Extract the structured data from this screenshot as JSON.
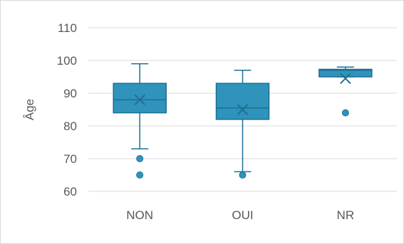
{
  "chart_data": {
    "type": "box",
    "title": "",
    "xlabel": "",
    "ylabel": "Âge",
    "ylim": [
      60,
      110
    ],
    "yticks": [
      60,
      70,
      80,
      90,
      100,
      110
    ],
    "ytick_labels": [
      "60",
      "70",
      "80",
      "90",
      "100",
      "110"
    ],
    "grid": true,
    "legend": "none",
    "categories": [
      "NON",
      "OUI",
      "NR"
    ],
    "boxes": [
      {
        "category": "NON",
        "whisker_low": 73,
        "q1": 84,
        "median": 88,
        "q3": 93,
        "whisker_high": 99,
        "mean": 88,
        "outliers": [
          70,
          65
        ]
      },
      {
        "category": "OUI",
        "whisker_low": 66,
        "q1": 82,
        "median": 85.5,
        "q3": 93,
        "whisker_high": 97,
        "mean": 85,
        "outliers": [
          65
        ]
      },
      {
        "category": "NR",
        "whisker_low": 95,
        "q1": 95,
        "median": 97,
        "q3": 97.3,
        "whisker_high": 98,
        "mean": 94.5,
        "outliers": [
          84
        ]
      }
    ],
    "colors": {
      "fill": "#2f93bb",
      "stroke": "#1e6f94",
      "grid": "#d9d9d9",
      "text": "#595959"
    }
  }
}
